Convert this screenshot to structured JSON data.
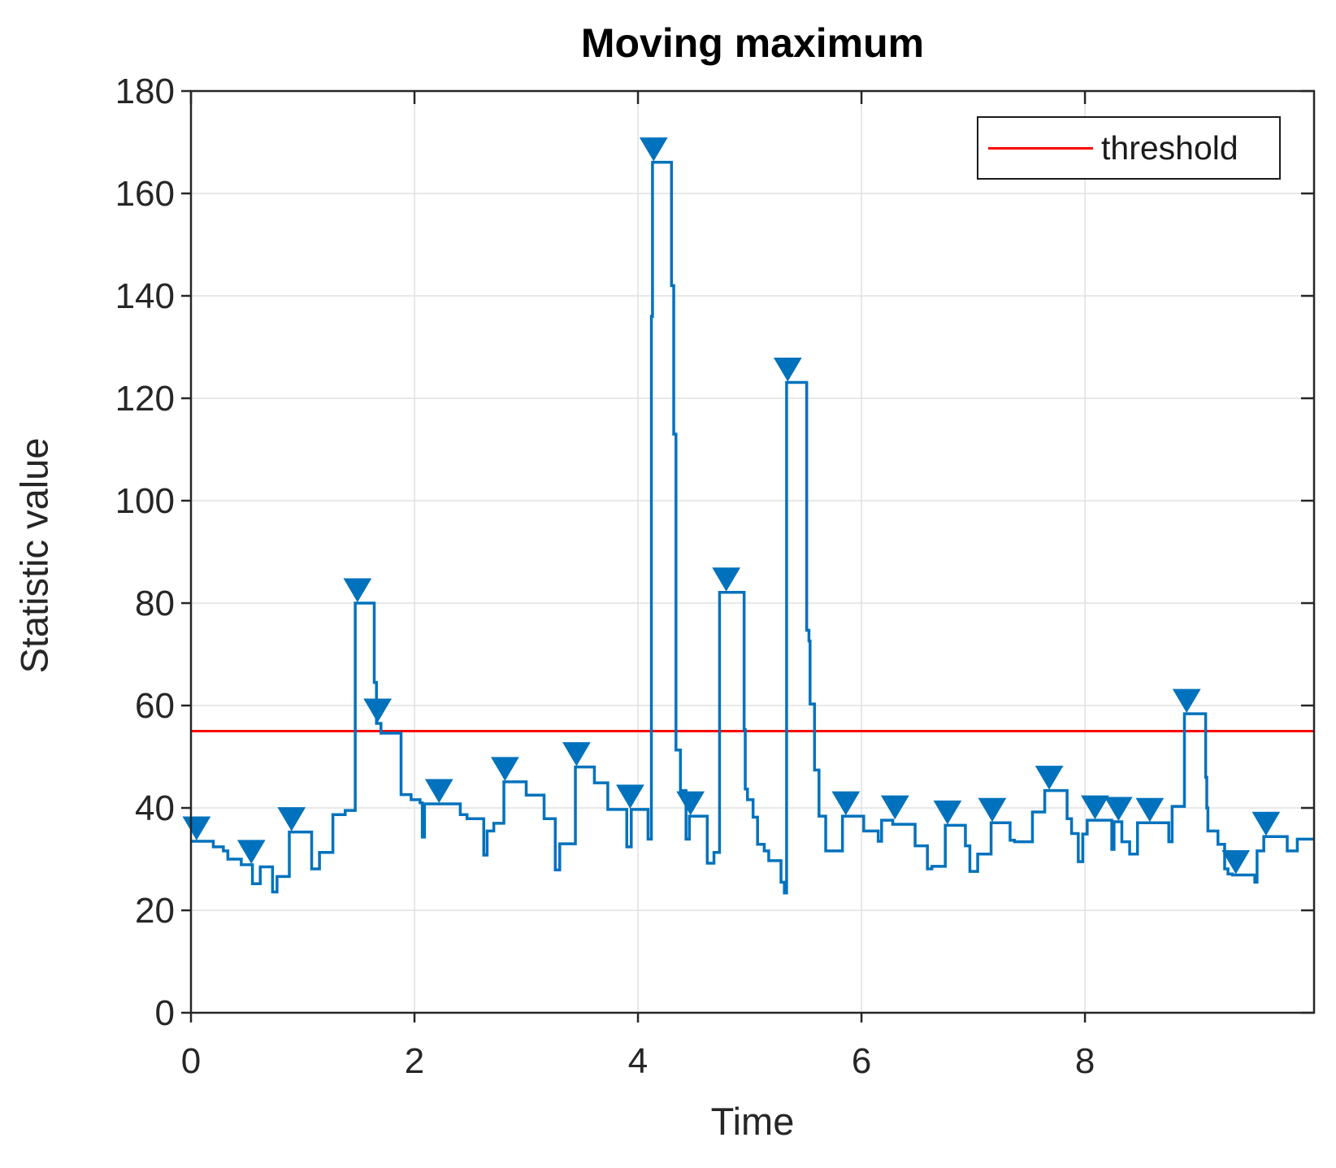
{
  "figure": {
    "title": "Moving maximum",
    "xlabel": "Time",
    "ylabel": "Statistic value"
  },
  "legend": {
    "label": "threshold"
  },
  "colors": {
    "series_line": "#0072BD",
    "threshold_line": "#FF0000",
    "grid": "#E0E0E0",
    "axis": "#262626",
    "tick_text": "#262626"
  },
  "chart_data": {
    "type": "line",
    "subtype": "stairstep-with-peak-markers",
    "title": "Moving maximum",
    "xlabel": "Time",
    "ylabel": "Statistic value",
    "xlim": [
      0,
      10.05
    ],
    "ylim": [
      0,
      180
    ],
    "x_ticks": [
      0,
      2,
      4,
      6,
      8
    ],
    "y_ticks": [
      0,
      20,
      40,
      60,
      80,
      100,
      120,
      140,
      160,
      180
    ],
    "grid": true,
    "legend_position": "northeast",
    "legend_entries": [
      {
        "label": "threshold",
        "color": "#FF0000"
      }
    ],
    "threshold": 55,
    "step_points": [
      [
        0.0,
        33.5
      ],
      [
        0.2,
        32.4
      ],
      [
        0.29,
        31.6
      ],
      [
        0.33,
        30.0
      ],
      [
        0.45,
        28.9
      ],
      [
        0.55,
        25.2
      ],
      [
        0.62,
        28.5
      ],
      [
        0.73,
        23.6
      ],
      [
        0.77,
        26.6
      ],
      [
        0.88,
        35.3
      ],
      [
        1.08,
        28.1
      ],
      [
        1.15,
        31.3
      ],
      [
        1.27,
        38.7
      ],
      [
        1.38,
        39.5
      ],
      [
        1.47,
        80.0
      ],
      [
        1.64,
        64.5
      ],
      [
        1.66,
        56.5
      ],
      [
        1.7,
        54.6
      ],
      [
        1.88,
        42.6
      ],
      [
        1.97,
        41.6
      ],
      [
        2.05,
        41.0
      ],
      [
        2.07,
        34.3
      ],
      [
        2.09,
        40.8
      ],
      [
        2.41,
        38.7
      ],
      [
        2.47,
        37.9
      ],
      [
        2.62,
        30.8
      ],
      [
        2.65,
        35.5
      ],
      [
        2.71,
        37.0
      ],
      [
        2.8,
        45.1
      ],
      [
        3.0,
        42.5
      ],
      [
        3.16,
        37.9
      ],
      [
        3.26,
        27.9
      ],
      [
        3.3,
        33.0
      ],
      [
        3.44,
        48.0
      ],
      [
        3.61,
        44.9
      ],
      [
        3.73,
        39.7
      ],
      [
        3.9,
        32.4
      ],
      [
        3.94,
        39.7
      ],
      [
        4.09,
        33.9
      ],
      [
        4.12,
        136.0
      ],
      [
        4.13,
        166.1
      ],
      [
        4.3,
        142.0
      ],
      [
        4.32,
        113.0
      ],
      [
        4.34,
        51.3
      ],
      [
        4.38,
        43.4
      ],
      [
        4.43,
        33.9
      ],
      [
        4.46,
        38.4
      ],
      [
        4.62,
        29.2
      ],
      [
        4.68,
        31.3
      ],
      [
        4.73,
        82.1
      ],
      [
        4.95,
        55.3
      ],
      [
        4.96,
        43.7
      ],
      [
        4.98,
        41.6
      ],
      [
        5.03,
        38.2
      ],
      [
        5.07,
        32.9
      ],
      [
        5.13,
        31.6
      ],
      [
        5.17,
        29.7
      ],
      [
        5.28,
        25.5
      ],
      [
        5.31,
        23.4
      ],
      [
        5.33,
        123.1
      ],
      [
        5.51,
        74.7
      ],
      [
        5.53,
        72.6
      ],
      [
        5.54,
        60.3
      ],
      [
        5.58,
        47.4
      ],
      [
        5.62,
        38.4
      ],
      [
        5.68,
        31.6
      ],
      [
        5.83,
        38.4
      ],
      [
        6.02,
        35.5
      ],
      [
        6.15,
        33.5
      ],
      [
        6.18,
        37.6
      ],
      [
        6.28,
        36.8
      ],
      [
        6.48,
        32.6
      ],
      [
        6.59,
        28.1
      ],
      [
        6.63,
        28.6
      ],
      [
        6.75,
        36.6
      ],
      [
        6.93,
        32.6
      ],
      [
        6.97,
        27.6
      ],
      [
        7.04,
        31.0
      ],
      [
        7.16,
        37.1
      ],
      [
        7.33,
        33.7
      ],
      [
        7.37,
        33.4
      ],
      [
        7.53,
        39.2
      ],
      [
        7.64,
        43.4
      ],
      [
        7.84,
        37.9
      ],
      [
        7.88,
        35.0
      ],
      [
        7.94,
        29.5
      ],
      [
        7.98,
        34.9
      ],
      [
        8.02,
        37.6
      ],
      [
        8.24,
        31.9
      ],
      [
        8.26,
        37.3
      ],
      [
        8.33,
        33.4
      ],
      [
        8.4,
        31.0
      ],
      [
        8.47,
        37.1
      ],
      [
        8.75,
        33.4
      ],
      [
        8.78,
        40.3
      ],
      [
        8.89,
        58.4
      ],
      [
        9.08,
        46.0
      ],
      [
        9.09,
        40.0
      ],
      [
        9.1,
        35.5
      ],
      [
        9.19,
        32.9
      ],
      [
        9.25,
        28.1
      ],
      [
        9.28,
        27.1
      ],
      [
        9.32,
        26.9
      ],
      [
        9.52,
        25.5
      ],
      [
        9.54,
        31.6
      ],
      [
        9.6,
        34.4
      ],
      [
        9.81,
        31.6
      ],
      [
        9.9,
        33.9
      ],
      [
        10.05,
        33.9
      ]
    ],
    "peak_markers": [
      [
        0.05,
        33.5
      ],
      [
        0.54,
        28.9
      ],
      [
        0.9,
        35.3
      ],
      [
        1.49,
        80.0
      ],
      [
        1.67,
        56.5
      ],
      [
        2.22,
        40.8
      ],
      [
        2.81,
        45.1
      ],
      [
        3.45,
        48.0
      ],
      [
        3.93,
        39.7
      ],
      [
        4.14,
        166.1
      ],
      [
        4.47,
        38.4
      ],
      [
        4.79,
        82.1
      ],
      [
        5.34,
        123.1
      ],
      [
        5.86,
        38.4
      ],
      [
        6.3,
        37.6
      ],
      [
        6.77,
        36.6
      ],
      [
        7.17,
        37.1
      ],
      [
        7.68,
        43.4
      ],
      [
        8.09,
        37.6
      ],
      [
        8.3,
        37.3
      ],
      [
        8.58,
        37.1
      ],
      [
        8.91,
        58.4
      ],
      [
        9.35,
        26.9
      ],
      [
        9.62,
        34.4
      ]
    ]
  }
}
